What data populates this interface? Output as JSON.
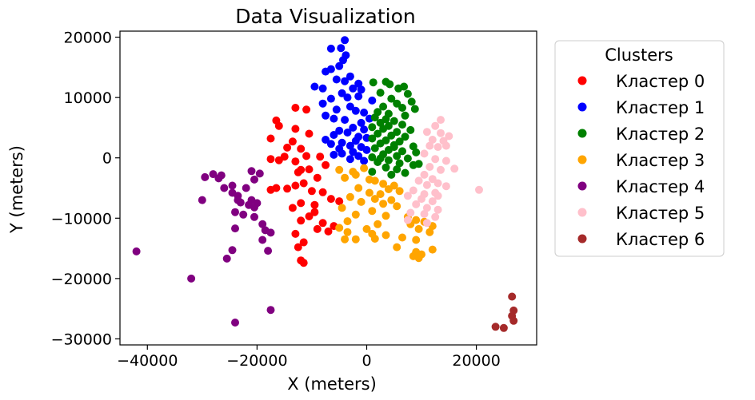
{
  "chart_data": {
    "type": "scatter",
    "title": "Data Visualization",
    "xlabel": "X (meters)",
    "ylabel": "Y (meters)",
    "xlim": [
      -45000,
      31000
    ],
    "ylim": [
      -31000,
      21000
    ],
    "xticks": [
      -40000,
      -20000,
      0,
      20000
    ],
    "yticks": [
      20000,
      10000,
      0,
      -10000,
      -20000,
      -30000
    ],
    "grid": false,
    "legend": {
      "title": "Clusters",
      "placement": "outside-right"
    },
    "series": [
      {
        "name": "Кластер 0",
        "color": "#ff0000",
        "points": [
          [
            -13000,
            8300
          ],
          [
            -11000,
            8000
          ],
          [
            -16500,
            6200
          ],
          [
            -16000,
            5300
          ],
          [
            -13000,
            4800
          ],
          [
            -17500,
            3200
          ],
          [
            -10500,
            4000
          ],
          [
            -13500,
            2700
          ],
          [
            -12000,
            1500
          ],
          [
            -14500,
            1700
          ],
          [
            -15000,
            200
          ],
          [
            -17500,
            -200
          ],
          [
            -16000,
            -400
          ],
          [
            -13000,
            -600
          ],
          [
            -11000,
            300
          ],
          [
            -8500,
            200
          ],
          [
            -7500,
            -1200
          ],
          [
            -10500,
            -1900
          ],
          [
            -12500,
            -2400
          ],
          [
            -9000,
            -3300
          ],
          [
            -11500,
            -4200
          ],
          [
            -13000,
            -4600
          ],
          [
            -14500,
            -5100
          ],
          [
            -10000,
            -5500
          ],
          [
            -8000,
            -5700
          ],
          [
            -6500,
            -6800
          ],
          [
            -5000,
            -7200
          ],
          [
            -12000,
            -7500
          ],
          [
            -13500,
            -8300
          ],
          [
            -9500,
            -9000
          ],
          [
            -10500,
            -9700
          ],
          [
            -12000,
            -10400
          ],
          [
            -8000,
            -10800
          ],
          [
            -6000,
            -11300
          ],
          [
            -9000,
            -11800
          ],
          [
            -7000,
            -12200
          ],
          [
            -13000,
            -12600
          ],
          [
            -11500,
            -14000
          ],
          [
            -12500,
            -14800
          ],
          [
            -12000,
            -17000
          ],
          [
            -11500,
            -17400
          ],
          [
            -17500,
            -5300
          ],
          [
            -16500,
            -5000
          ],
          [
            -12000,
            -2000
          ],
          [
            -9500,
            -7800
          ]
        ]
      },
      {
        "name": "Кластер 1",
        "color": "#0000ff",
        "points": [
          [
            -4000,
            19500
          ],
          [
            -4700,
            18200
          ],
          [
            -6500,
            18100
          ],
          [
            -3800,
            17000
          ],
          [
            -4300,
            16200
          ],
          [
            -5000,
            15200
          ],
          [
            -6500,
            14700
          ],
          [
            -7500,
            14300
          ],
          [
            -3000,
            13500
          ],
          [
            -5500,
            13000
          ],
          [
            -4000,
            12700
          ],
          [
            -1500,
            12300
          ],
          [
            -9500,
            11800
          ],
          [
            -2500,
            11500
          ],
          [
            -1000,
            11300
          ],
          [
            -4500,
            10700
          ],
          [
            -1500,
            10200
          ],
          [
            -3500,
            10000
          ],
          [
            -6500,
            9800
          ],
          [
            -8000,
            9000
          ],
          [
            -3000,
            8500
          ],
          [
            -5500,
            8000
          ],
          [
            -2000,
            7800
          ],
          [
            -500,
            7500
          ],
          [
            -7500,
            7000
          ],
          [
            -6000,
            6500
          ],
          [
            -4000,
            6300
          ],
          [
            -1000,
            5800
          ],
          [
            -2500,
            5000
          ],
          [
            -500,
            4700
          ],
          [
            -5000,
            4500
          ],
          [
            -3500,
            4200
          ],
          [
            -6000,
            3800
          ],
          [
            -1500,
            3500
          ],
          [
            0,
            3300
          ],
          [
            -7500,
            3000
          ],
          [
            -2000,
            2800
          ],
          [
            -4500,
            2500
          ],
          [
            -6500,
            2300
          ],
          [
            -3000,
            2000
          ],
          [
            -1000,
            1800
          ],
          [
            -5000,
            1500
          ],
          [
            0,
            1300
          ],
          [
            -2500,
            1000
          ],
          [
            -4500,
            700
          ],
          [
            -6000,
            500
          ],
          [
            -1500,
            300
          ],
          [
            -3000,
            -200
          ],
          [
            -500,
            -500
          ],
          [
            1000,
            9500
          ],
          [
            500,
            6500
          ],
          [
            -8000,
            11500
          ]
        ]
      },
      {
        "name": "Кластер 2",
        "color": "#008000",
        "points": [
          [
            1200,
            12500
          ],
          [
            3500,
            12600
          ],
          [
            4200,
            12200
          ],
          [
            5800,
            11500
          ],
          [
            6800,
            11800
          ],
          [
            7500,
            10600
          ],
          [
            2500,
            10800
          ],
          [
            4500,
            9800
          ],
          [
            8200,
            9300
          ],
          [
            5500,
            9000
          ],
          [
            3000,
            8500
          ],
          [
            6500,
            8300
          ],
          [
            8800,
            8100
          ],
          [
            2000,
            7600
          ],
          [
            4000,
            7300
          ],
          [
            7000,
            7000
          ],
          [
            1500,
            6700
          ],
          [
            3500,
            6400
          ],
          [
            5000,
            6100
          ],
          [
            2500,
            5800
          ],
          [
            6500,
            5500
          ],
          [
            4000,
            5300
          ],
          [
            1000,
            5100
          ],
          [
            3000,
            4800
          ],
          [
            8000,
            4600
          ],
          [
            5500,
            4300
          ],
          [
            2000,
            4000
          ],
          [
            4500,
            3700
          ],
          [
            7000,
            3500
          ],
          [
            1000,
            3200
          ],
          [
            3500,
            2900
          ],
          [
            6000,
            2700
          ],
          [
            2500,
            2400
          ],
          [
            5000,
            2100
          ],
          [
            8500,
            1900
          ],
          [
            1500,
            1600
          ],
          [
            4000,
            1300
          ],
          [
            6500,
            1100
          ],
          [
            9000,
            900
          ],
          [
            3000,
            600
          ],
          [
            5500,
            300
          ],
          [
            1000,
            100
          ],
          [
            7500,
            -100
          ],
          [
            4000,
            -400
          ],
          [
            2000,
            -700
          ],
          [
            6000,
            -900
          ],
          [
            8500,
            -1200
          ],
          [
            3500,
            -1600
          ],
          [
            5500,
            -1900
          ],
          [
            1000,
            -2300
          ],
          [
            7000,
            -2500
          ],
          [
            4500,
            -2800
          ],
          [
            9500,
            -1000
          ],
          [
            2500,
            -100
          ],
          [
            5000,
            1800
          ]
        ]
      },
      {
        "name": "Кластер 3",
        "color": "#ffa500",
        "points": [
          [
            -2500,
            -2300
          ],
          [
            -500,
            -1700
          ],
          [
            -2000,
            -2800
          ],
          [
            -4000,
            -3300
          ],
          [
            500,
            -3600
          ],
          [
            1500,
            -3800
          ],
          [
            3000,
            -4300
          ],
          [
            5000,
            -4600
          ],
          [
            -1500,
            -5000
          ],
          [
            4000,
            -5200
          ],
          [
            6000,
            -5500
          ],
          [
            500,
            -5800
          ],
          [
            2500,
            -6000
          ],
          [
            -3000,
            -6500
          ],
          [
            1500,
            -6800
          ],
          [
            4500,
            -7000
          ],
          [
            -1000,
            -7300
          ],
          [
            3000,
            -7600
          ],
          [
            5500,
            -8000
          ],
          [
            -4500,
            -8300
          ],
          [
            1000,
            -8800
          ],
          [
            -2000,
            -9400
          ],
          [
            3500,
            -9600
          ],
          [
            7500,
            -9800
          ],
          [
            -3500,
            -10500
          ],
          [
            2000,
            -11000
          ],
          [
            9000,
            -10300
          ],
          [
            10500,
            -10600
          ],
          [
            8000,
            -11000
          ],
          [
            -5000,
            -11600
          ],
          [
            0,
            -11800
          ],
          [
            12000,
            -11300
          ],
          [
            9500,
            -11800
          ],
          [
            -3500,
            -12300
          ],
          [
            1000,
            -12600
          ],
          [
            3500,
            -12800
          ],
          [
            6500,
            -13200
          ],
          [
            -4000,
            -13500
          ],
          [
            -2000,
            -13500
          ],
          [
            1500,
            -13400
          ],
          [
            9000,
            -13600
          ],
          [
            11500,
            -12300
          ],
          [
            5500,
            -14800
          ],
          [
            12000,
            -15200
          ],
          [
            9000,
            -15600
          ],
          [
            10000,
            -16000
          ],
          [
            9500,
            -16600
          ],
          [
            8500,
            -16300
          ],
          [
            -5000,
            -2000
          ]
        ]
      },
      {
        "name": "Кластер 4",
        "color": "#800080",
        "points": [
          [
            -42000,
            -15500
          ],
          [
            -32000,
            -20000
          ],
          [
            -30000,
            -7000
          ],
          [
            -29500,
            -3200
          ],
          [
            -28000,
            -2700
          ],
          [
            -27000,
            -3400
          ],
          [
            -26500,
            -2900
          ],
          [
            -26000,
            -5000
          ],
          [
            -24500,
            -4600
          ],
          [
            -23500,
            -6300
          ],
          [
            -22000,
            -5000
          ],
          [
            -24500,
            -5800
          ],
          [
            -23000,
            -7400
          ],
          [
            -21500,
            -7800
          ],
          [
            -20500,
            -8200
          ],
          [
            -20000,
            -7500
          ],
          [
            -21000,
            -7000
          ],
          [
            -24000,
            -9000
          ],
          [
            -22500,
            -9400
          ],
          [
            -20500,
            -9800
          ],
          [
            -19000,
            -11000
          ],
          [
            -18500,
            -12000
          ],
          [
            -17500,
            -12400
          ],
          [
            -19000,
            -13600
          ],
          [
            -24000,
            -11700
          ],
          [
            -24500,
            -15300
          ],
          [
            -25500,
            -16700
          ],
          [
            -20500,
            -3600
          ],
          [
            -21000,
            -2200
          ],
          [
            -19500,
            -2600
          ],
          [
            -18000,
            -15400
          ],
          [
            -17500,
            -25200
          ],
          [
            -24000,
            -27300
          ],
          [
            -23500,
            -7000
          ]
        ]
      },
      {
        "name": "Кластер 5",
        "color": "#ffc0cb",
        "points": [
          [
            13500,
            6300
          ],
          [
            12500,
            5300
          ],
          [
            11000,
            4300
          ],
          [
            13500,
            4100
          ],
          [
            15000,
            3600
          ],
          [
            12000,
            3000
          ],
          [
            14000,
            2800
          ],
          [
            11500,
            2000
          ],
          [
            13000,
            1800
          ],
          [
            10500,
            700
          ],
          [
            12500,
            -200
          ],
          [
            14500,
            -500
          ],
          [
            16000,
            -1800
          ],
          [
            11500,
            -1500
          ],
          [
            13500,
            -2000
          ],
          [
            10500,
            -2800
          ],
          [
            12000,
            -3500
          ],
          [
            9500,
            -3800
          ],
          [
            11000,
            -4500
          ],
          [
            13000,
            -4200
          ],
          [
            14500,
            -4700
          ],
          [
            8500,
            -5400
          ],
          [
            10500,
            -6000
          ],
          [
            12500,
            -5800
          ],
          [
            7500,
            -6300
          ],
          [
            10000,
            -6800
          ],
          [
            12000,
            -7200
          ],
          [
            9000,
            -7700
          ],
          [
            11000,
            -8300
          ],
          [
            13000,
            -8600
          ],
          [
            8000,
            -9100
          ],
          [
            10500,
            -9300
          ],
          [
            12500,
            -9800
          ],
          [
            7500,
            -10300
          ],
          [
            11000,
            -10800
          ],
          [
            20500,
            -5300
          ],
          [
            14500,
            2000
          ],
          [
            13000,
            -6300
          ]
        ]
      },
      {
        "name": "Кластер 6",
        "color": "#a52a2a",
        "points": [
          [
            26500,
            -23000
          ],
          [
            26800,
            -25300
          ],
          [
            26500,
            -26200
          ],
          [
            26800,
            -27000
          ],
          [
            23500,
            -28000
          ],
          [
            25000,
            -28200
          ]
        ]
      }
    ]
  }
}
